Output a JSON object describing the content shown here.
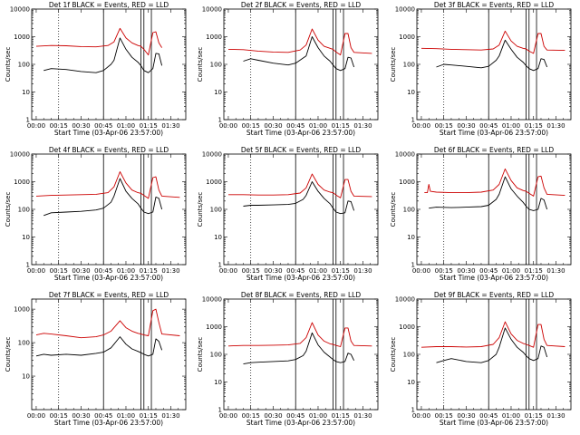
{
  "figure": {
    "ylabel": "Counts/sec",
    "xlabel": "Start Time (03-Apr-06 23:57:00)",
    "series_colors": {
      "events": "#000000",
      "lld": "#cc0000"
    }
  },
  "chart_data": [
    {
      "type": "line",
      "title": "Det 1f BLACK = Events, RED = LLD",
      "xlabel": "Start Time (03-Apr-06 23:57:00)",
      "ylabel": "Counts/sec",
      "x_unit": "minutes after 00:00 (04-Apr-06)",
      "xticks": [
        "00:00",
        "00:15",
        "00:30",
        "00:45",
        "01:00",
        "01:15",
        "01:30"
      ],
      "yticks": [
        "1",
        "10",
        "100",
        "1000",
        "10000"
      ],
      "ylim": [
        1,
        10000
      ],
      "yscale": "log",
      "series": [
        {
          "color": "#000000",
          "x": [
            5,
            10,
            20,
            30,
            40,
            45,
            50,
            52,
            56,
            60,
            64,
            68,
            70,
            72,
            75,
            78,
            80,
            82,
            84
          ],
          "values": [
            60,
            70,
            65,
            55,
            50,
            60,
            100,
            140,
            900,
            350,
            180,
            120,
            90,
            60,
            50,
            70,
            250,
            240,
            90
          ]
        },
        {
          "color": "#cc0000",
          "x": [
            0,
            10,
            20,
            30,
            40,
            48,
            52,
            56,
            60,
            64,
            68,
            70,
            72,
            75,
            78,
            80,
            82,
            84
          ],
          "values": [
            450,
            480,
            470,
            440,
            430,
            480,
            650,
            2000,
            900,
            600,
            480,
            450,
            350,
            220,
            1400,
            1500,
            600,
            400
          ]
        }
      ]
    },
    {
      "type": "line",
      "title": "Det 2f BLACK = Events, RED = LLD",
      "xlabel": "Start Time (03-Apr-06 23:57:00)",
      "ylabel": "Counts/sec",
      "x_unit": "minutes after 00:00 (04-Apr-06)",
      "xticks": [
        "00:00",
        "00:15",
        "00:30",
        "00:45",
        "01:00",
        "01:15",
        "01:30"
      ],
      "yticks": [
        "1",
        "10",
        "100",
        "1000",
        "10000"
      ],
      "ylim": [
        1,
        10000
      ],
      "yscale": "log",
      "series": [
        {
          "color": "#000000",
          "x": [
            10,
            15,
            20,
            30,
            40,
            45,
            50,
            52,
            56,
            60,
            64,
            68,
            70,
            72,
            75,
            78,
            80,
            82,
            84
          ],
          "values": [
            130,
            160,
            140,
            110,
            95,
            110,
            170,
            200,
            1000,
            400,
            200,
            130,
            95,
            70,
            60,
            70,
            180,
            170,
            80
          ]
        },
        {
          "color": "#cc0000",
          "x": [
            0,
            10,
            20,
            30,
            40,
            48,
            52,
            56,
            60,
            64,
            68,
            70,
            72,
            75,
            78,
            80,
            82,
            84,
            96
          ],
          "values": [
            350,
            340,
            300,
            280,
            270,
            330,
            500,
            1900,
            750,
            450,
            380,
            350,
            280,
            220,
            1300,
            1300,
            400,
            270,
            250
          ]
        }
      ]
    },
    {
      "type": "line",
      "title": "Det 3f BLACK = Events, RED = LLD",
      "xlabel": "Start Time (03-Apr-06 23:57:00)",
      "ylabel": "Counts/sec",
      "x_unit": "minutes after 00:00 (04-Apr-06)",
      "xticks": [
        "00:00",
        "00:15",
        "00:30",
        "00:45",
        "01:00",
        "01:15",
        "01:30"
      ],
      "yticks": [
        "1",
        "10",
        "100",
        "1000",
        "10000"
      ],
      "ylim": [
        1,
        10000
      ],
      "yscale": "log",
      "series": [
        {
          "color": "#000000",
          "x": [
            10,
            15,
            20,
            30,
            40,
            45,
            50,
            52,
            56,
            60,
            64,
            68,
            70,
            72,
            75,
            78,
            80,
            82,
            84
          ],
          "values": [
            80,
            100,
            95,
            85,
            75,
            85,
            140,
            200,
            750,
            350,
            180,
            120,
            90,
            70,
            60,
            70,
            160,
            150,
            80
          ]
        },
        {
          "color": "#cc0000",
          "x": [
            0,
            10,
            20,
            30,
            40,
            48,
            52,
            56,
            60,
            64,
            68,
            70,
            72,
            75,
            78,
            80,
            82,
            84,
            96
          ],
          "values": [
            380,
            370,
            350,
            340,
            330,
            360,
            500,
            1600,
            700,
            450,
            380,
            360,
            300,
            250,
            1300,
            1300,
            450,
            330,
            320
          ]
        }
      ]
    },
    {
      "type": "line",
      "title": "Det 4f BLACK = Events, RED = LLD",
      "xlabel": "Start Time (03-Apr-06 23:57:00)",
      "ylabel": "Counts/sec",
      "x_unit": "minutes after 00:00 (04-Apr-06)",
      "xticks": [
        "00:00",
        "00:15",
        "00:30",
        "00:45",
        "01:00",
        "01:15",
        "01:30"
      ],
      "yticks": [
        "1",
        "10",
        "100",
        "1000",
        "10000"
      ],
      "ylim": [
        1,
        10000
      ],
      "yscale": "log",
      "series": [
        {
          "color": "#000000",
          "x": [
            5,
            10,
            20,
            30,
            40,
            45,
            50,
            52,
            56,
            60,
            64,
            68,
            70,
            72,
            75,
            78,
            80,
            82,
            84
          ],
          "values": [
            60,
            75,
            80,
            85,
            95,
            110,
            180,
            300,
            1300,
            450,
            250,
            160,
            110,
            80,
            70,
            80,
            280,
            250,
            100
          ]
        },
        {
          "color": "#cc0000",
          "x": [
            0,
            10,
            20,
            30,
            40,
            48,
            52,
            56,
            60,
            64,
            68,
            70,
            72,
            75,
            78,
            80,
            82,
            84,
            96
          ],
          "values": [
            300,
            320,
            330,
            340,
            350,
            400,
            650,
            2300,
            900,
            500,
            400,
            380,
            320,
            250,
            1400,
            1500,
            500,
            300,
            270
          ]
        }
      ]
    },
    {
      "type": "line",
      "title": "Det 5f BLACK = Events, RED = LLD",
      "xlabel": "Start Time (03-Apr-06 23:57:00)",
      "ylabel": "Counts/sec",
      "x_unit": "minutes after 00:00 (04-Apr-06)",
      "xticks": [
        "00:00",
        "00:15",
        "00:30",
        "00:45",
        "01:00",
        "01:15",
        "01:30"
      ],
      "yticks": [
        "1",
        "10",
        "100",
        "1000",
        "10000"
      ],
      "ylim": [
        1,
        10000
      ],
      "yscale": "log",
      "series": [
        {
          "color": "#000000",
          "x": [
            10,
            15,
            20,
            30,
            40,
            45,
            50,
            52,
            56,
            60,
            64,
            68,
            70,
            72,
            75,
            78,
            80,
            82,
            84
          ],
          "values": [
            130,
            140,
            140,
            145,
            150,
            165,
            230,
            320,
            1000,
            450,
            250,
            160,
            110,
            80,
            70,
            75,
            200,
            190,
            90
          ]
        },
        {
          "color": "#cc0000",
          "x": [
            0,
            10,
            20,
            30,
            40,
            48,
            52,
            56,
            60,
            64,
            68,
            70,
            72,
            75,
            78,
            80,
            82,
            84,
            96
          ],
          "values": [
            340,
            340,
            330,
            330,
            340,
            390,
            600,
            1900,
            800,
            500,
            420,
            400,
            330,
            260,
            1200,
            1200,
            450,
            300,
            290
          ]
        }
      ]
    },
    {
      "type": "line",
      "title": "Det 6f BLACK = Events, RED = LLD",
      "xlabel": "Start Time (03-Apr-06 23:57:00)",
      "ylabel": "Counts/sec",
      "x_unit": "minutes after 00:00 (04-Apr-06)",
      "xticks": [
        "00:00",
        "00:15",
        "00:30",
        "00:45",
        "01:00",
        "01:15",
        "01:30"
      ],
      "yticks": [
        "1",
        "10",
        "100",
        "1000",
        "10000"
      ],
      "ylim": [
        1,
        10000
      ],
      "yscale": "log",
      "series": [
        {
          "color": "#000000",
          "x": [
            5,
            10,
            20,
            30,
            40,
            45,
            50,
            52,
            56,
            60,
            64,
            68,
            70,
            72,
            75,
            78,
            80,
            82,
            84
          ],
          "values": [
            110,
            120,
            115,
            120,
            125,
            140,
            230,
            350,
            1500,
            550,
            300,
            180,
            130,
            100,
            90,
            100,
            250,
            220,
            100
          ]
        },
        {
          "color": "#cc0000",
          "x": [
            2,
            4,
            5,
            6,
            10,
            20,
            30,
            40,
            48,
            52,
            56,
            60,
            64,
            68,
            70,
            72,
            75,
            78,
            80,
            82,
            84,
            96
          ],
          "values": [
            400,
            400,
            800,
            450,
            420,
            400,
            400,
            420,
            500,
            800,
            2900,
            1100,
            600,
            480,
            450,
            380,
            300,
            1500,
            1600,
            600,
            350,
            320
          ]
        }
      ]
    },
    {
      "type": "line",
      "title": "Det 7f BLACK = Events, RED = LLD",
      "xlabel": "Start Time (03-Apr-06 23:57:00)",
      "ylabel": "Counts/sec",
      "x_unit": "minutes after 00:00 (04-Apr-06)",
      "xticks": [
        "00:00",
        "00:15",
        "00:30",
        "00:45",
        "01:00",
        "01:15",
        "01:30"
      ],
      "yticks": [
        "10",
        "100",
        "1000"
      ],
      "ylim": [
        1,
        2000
      ],
      "yscale": "log",
      "series": [
        {
          "color": "#000000",
          "x": [
            0,
            5,
            10,
            20,
            30,
            40,
            45,
            50,
            52,
            56,
            60,
            64,
            68,
            70,
            72,
            75,
            78,
            80,
            82,
            84
          ],
          "values": [
            40,
            45,
            42,
            45,
            42,
            48,
            52,
            70,
            90,
            150,
            90,
            65,
            55,
            50,
            45,
            40,
            45,
            130,
            110,
            60
          ]
        },
        {
          "color": "#cc0000",
          "x": [
            0,
            5,
            10,
            20,
            30,
            40,
            45,
            50,
            52,
            56,
            60,
            64,
            68,
            70,
            72,
            75,
            78,
            80,
            82,
            84,
            96
          ],
          "values": [
            170,
            190,
            180,
            160,
            140,
            150,
            170,
            220,
            280,
            450,
            280,
            220,
            190,
            180,
            170,
            160,
            900,
            1000,
            400,
            180,
            160
          ]
        }
      ]
    },
    {
      "type": "line",
      "title": "Det 8f BLACK = Events, RED = LLD",
      "xlabel": "Start Time (03-Apr-06 23:57:00)",
      "ylabel": "Counts/sec",
      "x_unit": "minutes after 00:00 (04-Apr-06)",
      "xticks": [
        "00:00",
        "00:15",
        "00:30",
        "00:45",
        "01:00",
        "01:15",
        "01:30"
      ],
      "yticks": [
        "1",
        "10",
        "100",
        "1000",
        "10000"
      ],
      "ylim": [
        1,
        10000
      ],
      "yscale": "log",
      "series": [
        {
          "color": "#000000",
          "x": [
            10,
            15,
            20,
            30,
            40,
            45,
            50,
            52,
            56,
            60,
            64,
            68,
            70,
            72,
            75,
            78,
            80,
            82,
            84
          ],
          "values": [
            45,
            50,
            52,
            55,
            58,
            65,
            90,
            130,
            600,
            220,
            120,
            80,
            65,
            55,
            50,
            55,
            110,
            100,
            60
          ]
        },
        {
          "color": "#cc0000",
          "x": [
            0,
            10,
            20,
            30,
            40,
            48,
            52,
            56,
            60,
            64,
            68,
            70,
            72,
            75,
            78,
            80,
            82,
            84,
            96
          ],
          "values": [
            200,
            210,
            210,
            215,
            220,
            250,
            400,
            1400,
            500,
            300,
            240,
            230,
            210,
            190,
            900,
            900,
            300,
            210,
            200
          ]
        }
      ]
    },
    {
      "type": "line",
      "title": "Det 9f BLACK = Events, RED = LLD",
      "xlabel": "Start Time (03-Apr-06 23:57:00)",
      "ylabel": "Counts/sec",
      "x_unit": "minutes after 00:00 (04-Apr-06)",
      "xticks": [
        "00:00",
        "00:15",
        "00:30",
        "00:45",
        "01:00",
        "01:15",
        "01:30"
      ],
      "yticks": [
        "1",
        "10",
        "100",
        "1000",
        "10000"
      ],
      "ylim": [
        1,
        10000
      ],
      "yscale": "log",
      "series": [
        {
          "color": "#000000",
          "x": [
            10,
            15,
            20,
            30,
            40,
            45,
            50,
            52,
            56,
            60,
            64,
            68,
            70,
            72,
            75,
            78,
            80,
            82,
            84
          ],
          "values": [
            50,
            60,
            70,
            55,
            50,
            60,
            100,
            180,
            900,
            350,
            180,
            120,
            90,
            70,
            60,
            70,
            200,
            180,
            80
          ]
        },
        {
          "color": "#cc0000",
          "x": [
            0,
            10,
            20,
            30,
            40,
            48,
            52,
            56,
            60,
            64,
            68,
            70,
            72,
            75,
            78,
            80,
            82,
            84,
            96
          ],
          "values": [
            180,
            190,
            190,
            185,
            190,
            230,
            400,
            1500,
            550,
            320,
            250,
            230,
            210,
            180,
            1200,
            1200,
            350,
            210,
            190
          ]
        }
      ]
    }
  ]
}
